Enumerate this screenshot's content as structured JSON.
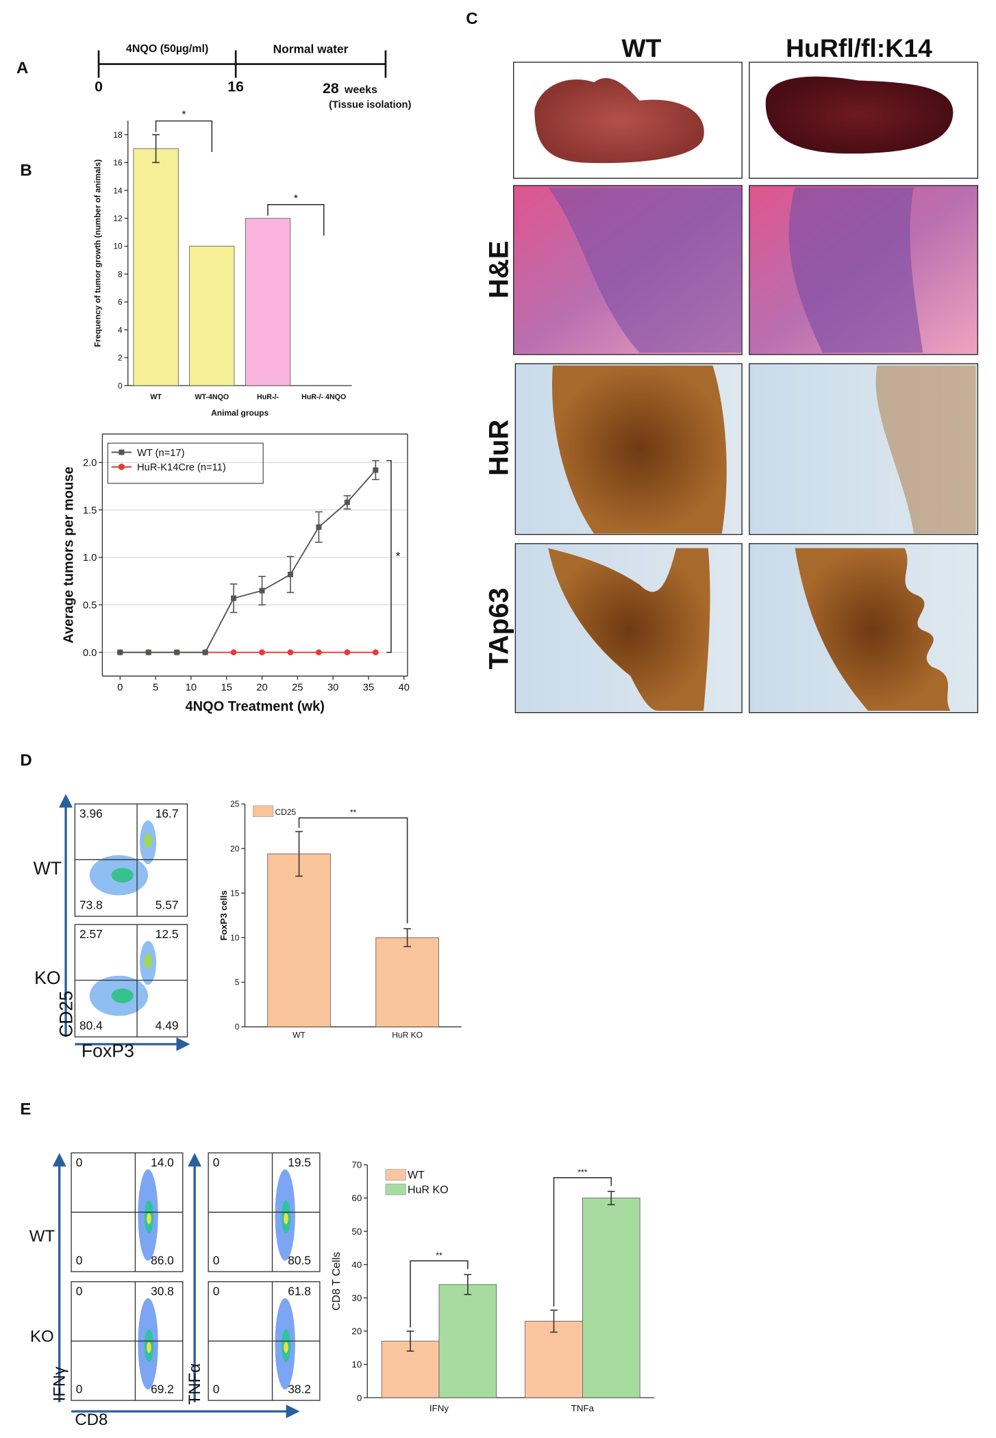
{
  "panel_labels": [
    "A",
    "B",
    "C",
    "D",
    "E"
  ],
  "timeline": {
    "segments": [
      "4NQO (50µg/ml)",
      "Normal water"
    ],
    "ticks": [
      "0",
      "16",
      "28"
    ],
    "unit": "weeks",
    "note": "(Tissue isolation)"
  },
  "histology": {
    "columns": [
      "WT",
      "HuRfl/fl:K14"
    ],
    "rows": [
      "H&E",
      "HuR",
      "TAp63"
    ]
  },
  "flow_cd25": {
    "rows": [
      "WT",
      "KO"
    ],
    "y_label": "CD25",
    "x_label": "FoxP3",
    "quadrants": [
      [
        "3.96",
        "16.7",
        "73.8",
        "5.57"
      ],
      [
        "2.57",
        "12.5",
        "80.4",
        "4.49"
      ]
    ]
  },
  "flow_cd8": {
    "rows": [
      "WT",
      "KO"
    ],
    "y_labels": [
      "IFNγ",
      "TNFα"
    ],
    "x_label": "CD8",
    "quadrants": [
      [
        [
          "0",
          "14.0",
          "0",
          "86.0"
        ],
        [
          "0",
          "19.5",
          "0",
          "80.5"
        ]
      ],
      [
        [
          "0",
          "30.8",
          "0",
          "69.2"
        ],
        [
          "0",
          "61.8",
          "0",
          "38.2"
        ]
      ]
    ]
  },
  "chart_data": [
    {
      "type": "bar",
      "x_label": "Animal groups",
      "y_label": "Frequency of tumor growth (number of animals)",
      "categories": [
        "WT",
        "WT-4NQO",
        "HuR-/-",
        "HuR-/- 4NQO"
      ],
      "values": [
        17,
        10,
        12,
        0
      ],
      "errors": [
        1,
        null,
        null,
        null
      ],
      "colors": [
        "#f6ef96",
        "#f6ef96",
        "#f9b5dd",
        "#f6ef96"
      ],
      "ylim": [
        0,
        19
      ],
      "yticks": [
        0,
        2,
        4,
        6,
        8,
        10,
        12,
        14,
        16,
        18
      ],
      "annotations": [
        "*",
        "*"
      ]
    },
    {
      "type": "line",
      "x_label": "4NQO Treatment (wk)",
      "y_label": "Average tumors per mouse",
      "x": [
        0,
        4,
        8,
        12,
        16,
        20,
        24,
        28,
        32,
        36
      ],
      "series": [
        {
          "name": "WT (n=17)",
          "color": "#555555",
          "marker": "square",
          "values": [
            0,
            0,
            0,
            0,
            0.57,
            0.65,
            0.82,
            1.32,
            1.58,
            1.92
          ],
          "errors": [
            0,
            0,
            0,
            0,
            0.15,
            0.15,
            0.19,
            0.16,
            0.07,
            0.1
          ]
        },
        {
          "name": "HuR-K14Cre (n=11)",
          "color": "#e8393b",
          "marker": "circle",
          "values": [
            0,
            0,
            0,
            0,
            0,
            0,
            0,
            0,
            0,
            0
          ]
        }
      ],
      "xlim": [
        -2.5,
        40.5
      ],
      "ylim": [
        -0.25,
        2.3
      ],
      "xticks": [
        0,
        5,
        10,
        15,
        20,
        25,
        30,
        35,
        40
      ],
      "yticks": [
        {
          "value": 0,
          "label": "0.0"
        },
        {
          "value": 0.5,
          "label": "0.5"
        },
        {
          "value": 1,
          "label": "1.0"
        },
        {
          "value": 1.5,
          "label": "1.5"
        },
        {
          "value": 2,
          "label": "2.0"
        }
      ],
      "grid": true,
      "annotations": [
        "*"
      ]
    },
    {
      "type": "bar",
      "y_label": "FoxP3 cells",
      "categories": [
        "WT",
        "HuR KO"
      ],
      "series": [
        {
          "name": "CD25",
          "color": "#f9c49a",
          "values": [
            19.4,
            10
          ],
          "errors": [
            2.5,
            1
          ]
        }
      ],
      "ylim": [
        0,
        25
      ],
      "yticks": [
        0,
        5,
        10,
        15,
        20,
        25
      ],
      "annotations": [
        "**"
      ]
    },
    {
      "type": "bar",
      "y_label": "CD8 T Cells",
      "categories": [
        "IFNy",
        "TNFa"
      ],
      "series": [
        {
          "name": "WT",
          "color": "#fbc69f",
          "values": [
            17,
            23
          ],
          "errors": [
            3,
            3.3
          ]
        },
        {
          "name": "HuR KO",
          "color": "#a8dba0",
          "values": [
            34,
            60
          ],
          "errors": [
            3,
            2
          ]
        }
      ],
      "ylim": [
        0,
        70
      ],
      "yticks": [
        0,
        10,
        20,
        30,
        40,
        50,
        60,
        70
      ],
      "annotations": [
        "**",
        "***"
      ]
    }
  ]
}
